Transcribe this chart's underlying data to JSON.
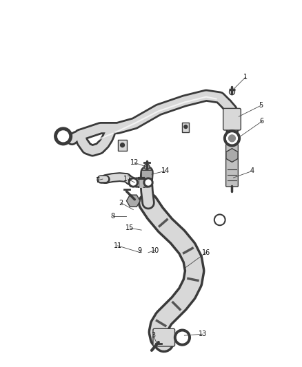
{
  "background_color": "#ffffff",
  "line_color": "#3a3a3a",
  "figsize": [
    4.38,
    5.33
  ],
  "dpi": 100,
  "tube_fill": "#d8d8d8",
  "tube_edge": "#3a3a3a",
  "label_fontsize": 7.0
}
